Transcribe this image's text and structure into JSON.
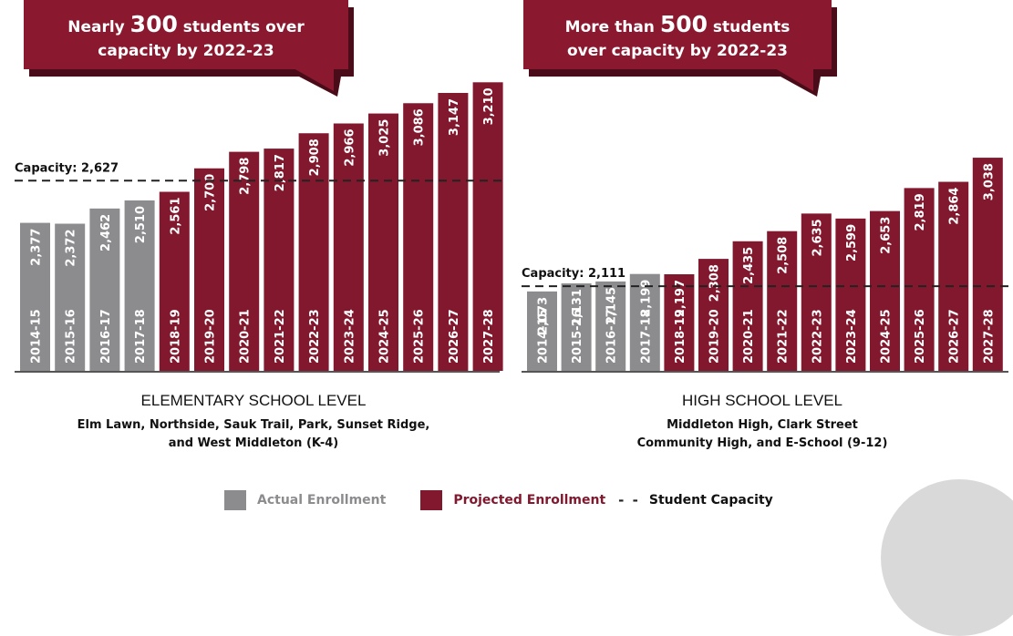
{
  "colors": {
    "actual": "#8c8c8f",
    "projected": "#82182e",
    "callout": "#8a1930",
    "callout_shadow": "#4a0c18",
    "dash": "#222222"
  },
  "chart_data": [
    {
      "type": "bar",
      "title": "ELEMENTARY SCHOOL LEVEL",
      "subtitle_lines": [
        "Elm Lawn, Northside, Sauk Trail, Park, Sunset Ridge,",
        "and West Middleton (K-4)"
      ],
      "callout_lines": [
        [
          {
            "t": "Nearly ",
            "big": false
          },
          {
            "t": "300",
            "big": true
          },
          {
            "t": " students over",
            "big": false
          }
        ],
        [
          {
            "t": "capacity by 2022-23",
            "big": false
          }
        ]
      ],
      "capacity_label": "Capacity: 2,627",
      "capacity": 2627,
      "categories": [
        "2014-15",
        "2015-16",
        "2016-17",
        "2017-18",
        "2018-19",
        "2019-20",
        "2020-21",
        "2021-22",
        "2022-23",
        "2023-24",
        "2024-25",
        "2025-26",
        "2026-27",
        "2027-28"
      ],
      "series": [
        {
          "name": "Actual Enrollment",
          "values": [
            2377,
            2372,
            2462,
            2510,
            null,
            null,
            null,
            null,
            null,
            null,
            null,
            null,
            null,
            null
          ]
        },
        {
          "name": "Projected Enrollment",
          "values": [
            null,
            null,
            null,
            null,
            2561,
            2700,
            2798,
            2817,
            2908,
            2966,
            3025,
            3086,
            3147,
            3210
          ]
        }
      ],
      "value_labels": [
        "2,377",
        "2,372",
        "2,462",
        "2,510",
        "2,561",
        "2,700",
        "2,798",
        "2,817",
        "2,908",
        "2,966",
        "3,025",
        "3,086",
        "3,147",
        "3,210"
      ]
    },
    {
      "type": "bar",
      "title": "HIGH SCHOOL LEVEL",
      "subtitle_lines": [
        "Middleton High, Clark Street",
        "Community High, and E-School (9-12)"
      ],
      "callout_lines": [
        [
          {
            "t": "More than ",
            "big": false
          },
          {
            "t": "500",
            "big": true
          },
          {
            "t": " students",
            "big": false
          }
        ],
        [
          {
            "t": "over capacity by 2022-23",
            "big": false
          }
        ]
      ],
      "capacity_label": "Capacity: 2,111",
      "capacity": 2111,
      "categories": [
        "2014-15",
        "2015-16",
        "2016-17",
        "2017-18",
        "2018-19",
        "2019-20",
        "2020-21",
        "2021-22",
        "2022-23",
        "2023-24",
        "2024-25",
        "2025-26",
        "2026-27",
        "2027-28"
      ],
      "series": [
        {
          "name": "Actual Enrollment",
          "values": [
            2073,
            2131,
            2145,
            2199,
            null,
            null,
            null,
            null,
            null,
            null,
            null,
            null,
            null,
            null
          ]
        },
        {
          "name": "Projected Enrollment",
          "values": [
            null,
            null,
            null,
            null,
            2197,
            2308,
            2435,
            2508,
            2635,
            2599,
            2653,
            2819,
            2864,
            3038
          ]
        }
      ],
      "value_labels": [
        "2,073",
        "2,131",
        "2,145",
        "2,199",
        "2,197",
        "2,308",
        "2,435",
        "2,508",
        "2,635",
        "2,599",
        "2,653",
        "2,819",
        "2,864",
        "3,038"
      ]
    }
  ],
  "legend": {
    "actual_label": "Actual Enrollment",
    "projected_label": "Projected Enrollment",
    "capacity_label": "Student Capacity",
    "dash_glyph": "- -"
  }
}
